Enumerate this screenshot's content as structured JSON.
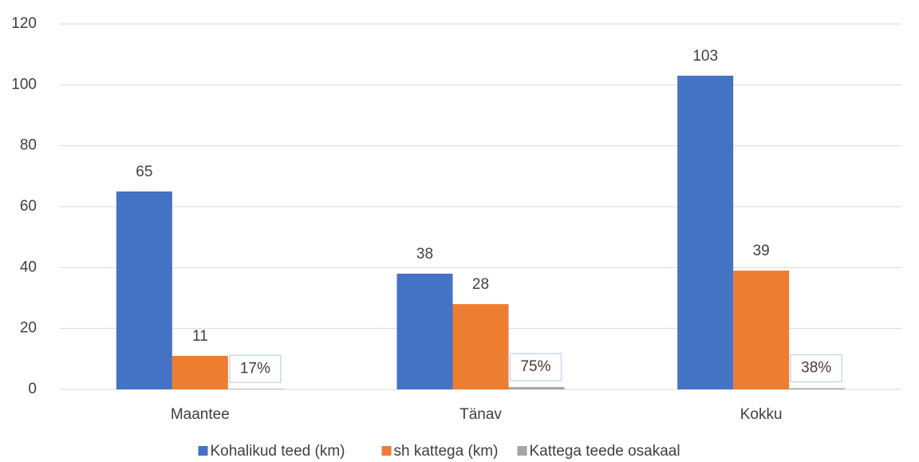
{
  "chart_data": {
    "type": "bar",
    "categories": [
      "Maantee",
      "Tänav",
      "Kokku"
    ],
    "series": [
      {
        "name": "Kohalikud teed (km)",
        "color": "#4472c4",
        "values": [
          65,
          38,
          103
        ]
      },
      {
        "name": "sh kattega (km)",
        "color": "#ed7d31",
        "values": [
          11,
          28,
          39
        ]
      },
      {
        "name": "Kattega teede osakaal",
        "color": "#a5a5a5",
        "values": [
          0.17,
          0.75,
          0.38
        ],
        "value_labels": [
          "17%",
          "75%",
          "38%"
        ]
      }
    ],
    "ylim": [
      0,
      120
    ],
    "yticks": [
      0,
      20,
      40,
      60,
      80,
      100,
      120
    ],
    "grid": true,
    "legend": "bottom"
  }
}
